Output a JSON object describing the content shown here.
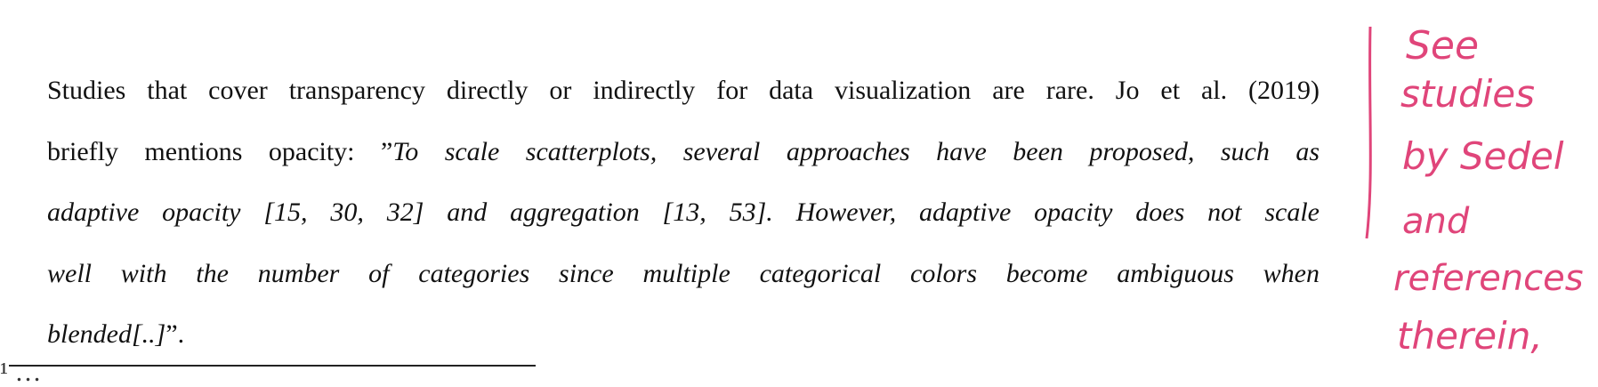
{
  "paragraph": {
    "line1": "Studies that cover transparency directly or indirectly for data visualization are rare. Jo et al. (2019)",
    "line2_plain": "briefly mentions opacity: ”",
    "line2_italic": "To scale scatterplots, several approaches have been proposed, such as",
    "line3": "adaptive opacity [15, 30, 32] and aggregation [13, 53]. However, adaptive opacity does not scale",
    "line4": "well with the number of categories since multiple categorical colors become ambiguous when",
    "line5_italic": "blended[..]",
    "line5_plain": "”."
  },
  "footnote_partial_text": "¹ …",
  "handwritten_note": {
    "color": "#e0457a",
    "lines": [
      "See",
      "studies",
      "by Sedel",
      "and",
      "references",
      "therein,"
    ]
  }
}
